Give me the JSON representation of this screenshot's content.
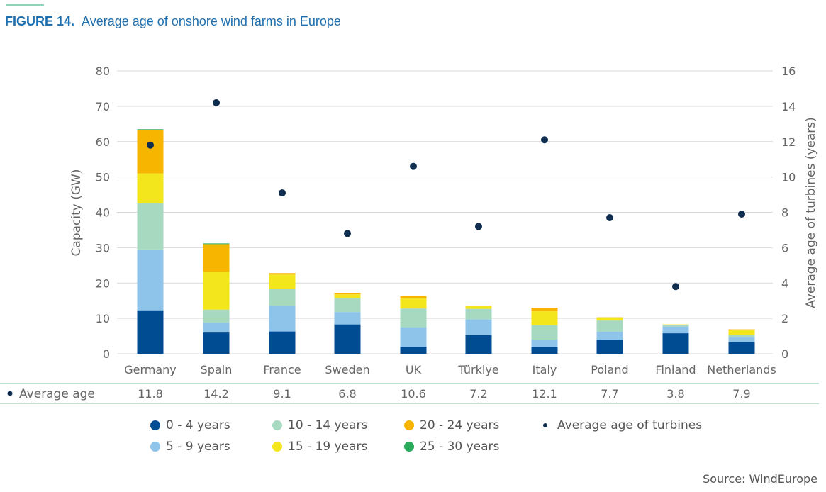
{
  "figure": {
    "number": "FIGURE 14.",
    "title": "Average age of onshore wind farms in Europe"
  },
  "source": "Source: WindEurope",
  "colors": {
    "title": "#1f6fae",
    "accent_line": "#8fd3b8",
    "grid": "#d9d9d9",
    "table_line": "#a8d9c4"
  },
  "chart_data": {
    "type": "bar",
    "stacked": true,
    "categories": [
      "Germany",
      "Spain",
      "France",
      "Sweden",
      "UK",
      "Türkiye",
      "Italy",
      "Poland",
      "Finland",
      "Netherlands"
    ],
    "series": [
      {
        "name": "0 - 4 years",
        "color": "#004c93",
        "values": [
          12.3,
          6.0,
          6.3,
          8.3,
          2.0,
          5.3,
          2.0,
          4.0,
          5.8,
          3.3
        ]
      },
      {
        "name": "5 - 9 years",
        "color": "#8ec3ea",
        "values": [
          17.2,
          2.8,
          7.3,
          3.5,
          5.5,
          4.4,
          2.0,
          2.2,
          1.9,
          1.3
        ]
      },
      {
        "name": "10 - 14 years",
        "color": "#a6d9bf",
        "values": [
          13.0,
          3.7,
          4.8,
          4.0,
          5.3,
          3.0,
          4.1,
          3.2,
          0.5,
          0.8
        ]
      },
      {
        "name": "15 - 19 years",
        "color": "#f4e61c",
        "values": [
          8.5,
          10.7,
          4.0,
          1.0,
          2.8,
          0.8,
          3.9,
          0.8,
          0.1,
          1.2
        ]
      },
      {
        "name": "20 - 24 years",
        "color": "#f7b500",
        "values": [
          12.3,
          7.8,
          0.4,
          0.4,
          0.7,
          0.1,
          1.0,
          0.1,
          0.0,
          0.3
        ]
      },
      {
        "name": "25 - 30 years",
        "color": "#2aaa5b",
        "values": [
          0.2,
          0.2,
          0.0,
          0.0,
          0.0,
          0.0,
          0.0,
          0.0,
          0.0,
          0.0
        ]
      }
    ],
    "average_age": {
      "name": "Average age of turbines",
      "color": "#0f2d4f",
      "values": [
        11.8,
        14.2,
        9.1,
        6.8,
        10.6,
        7.2,
        12.1,
        7.7,
        3.8,
        7.9
      ],
      "labels": [
        "11.8",
        "14.2",
        "9.1",
        "6.8",
        "10.6",
        "7.2",
        "12.1",
        "7.7",
        "3.8",
        "7.9"
      ]
    },
    "y_left": {
      "label": "Capacity (GW)",
      "range": [
        0,
        80
      ],
      "ticks": [
        "0",
        "10",
        "20",
        "30",
        "40",
        "50",
        "60",
        "70",
        "80"
      ]
    },
    "y_right": {
      "label": "Average age of turbines (years)",
      "range": [
        0,
        16
      ],
      "ticks": [
        "0",
        "2",
        "4",
        "6",
        "8",
        "10",
        "12",
        "14",
        "16"
      ]
    },
    "table_row_label": "Average age",
    "grid": true,
    "legend_position": "bottom"
  },
  "legend": [
    {
      "label": "0 - 4 years",
      "color": "#004c93",
      "icon": "circle-marker"
    },
    {
      "label": "10 - 14 years",
      "color": "#a6d9bf",
      "icon": "circle-marker"
    },
    {
      "label": "20 - 24 years",
      "color": "#f7b500",
      "icon": "circle-marker"
    },
    {
      "label": "Average age of turbines",
      "color": "#0f2d4f",
      "icon": "dot-marker"
    },
    {
      "label": "5 - 9 years",
      "color": "#8ec3ea",
      "icon": "circle-marker"
    },
    {
      "label": "15 - 19 years",
      "color": "#f4e61c",
      "icon": "circle-marker"
    },
    {
      "label": "25 - 30 years",
      "color": "#2aaa5b",
      "icon": "circle-marker"
    }
  ]
}
